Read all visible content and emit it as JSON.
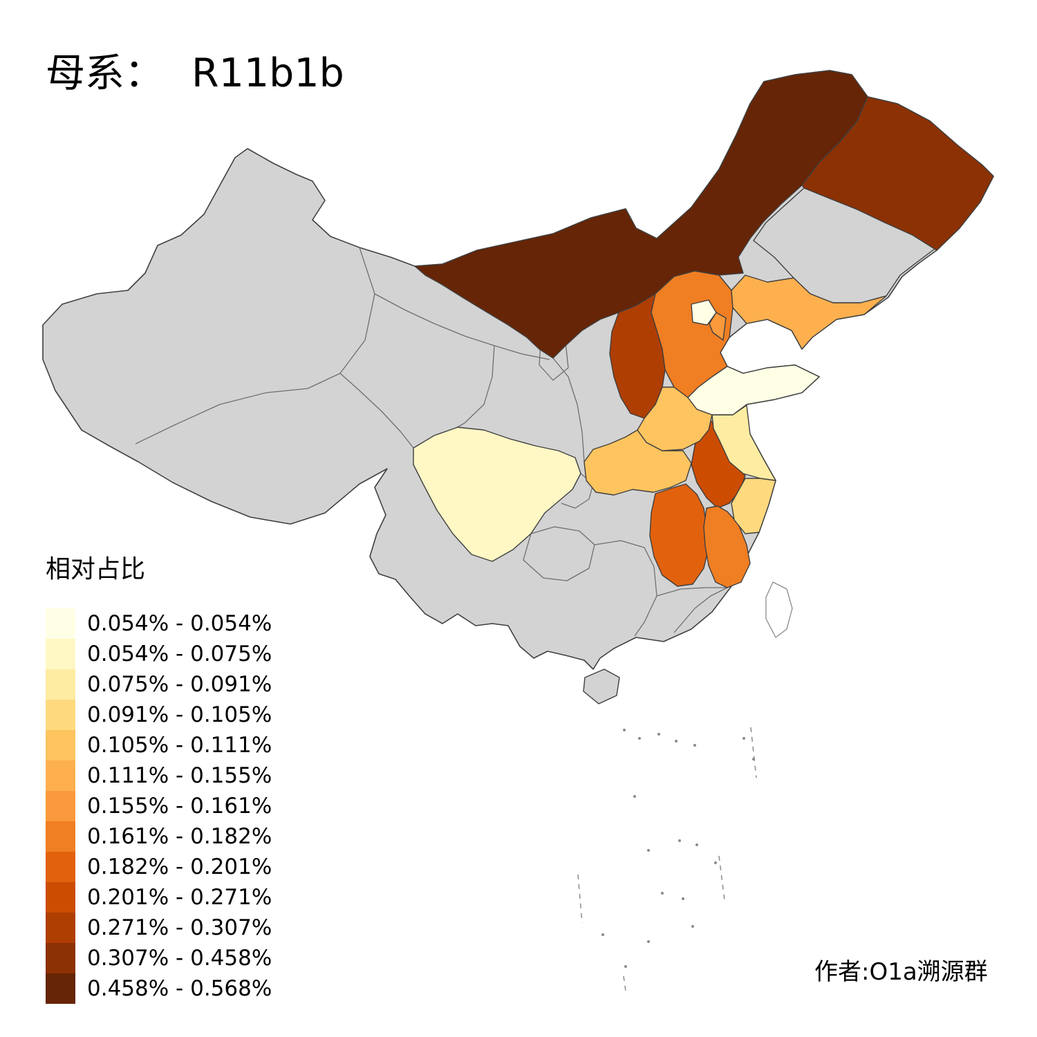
{
  "title": {
    "prefix": "母系：",
    "haplogroup": "R11b1b"
  },
  "legend": {
    "title": "相对占比",
    "bins": [
      {
        "label": "0.054% - 0.054%",
        "color": "#FFFFE5"
      },
      {
        "label": "0.054% - 0.075%",
        "color": "#FFF8C5"
      },
      {
        "label": "0.075% - 0.091%",
        "color": "#FEECA2"
      },
      {
        "label": "0.091% - 0.105%",
        "color": "#FED97E"
      },
      {
        "label": "0.105% - 0.111%",
        "color": "#FEC45F"
      },
      {
        "label": "0.111% - 0.155%",
        "color": "#FEB04E"
      },
      {
        "label": "0.155% - 0.161%",
        "color": "#FB9A3C"
      },
      {
        "label": "0.161% - 0.182%",
        "color": "#F07E22"
      },
      {
        "label": "0.182% - 0.201%",
        "color": "#E2610D"
      },
      {
        "label": "0.201% - 0.271%",
        "color": "#CC4C02"
      },
      {
        "label": "0.271% - 0.307%",
        "color": "#AF3E03"
      },
      {
        "label": "0.307% - 0.458%",
        "color": "#8C3104"
      },
      {
        "label": "0.458% - 0.568%",
        "color": "#662506"
      }
    ]
  },
  "attribution": "作者:O1a溯源群",
  "map": {
    "no_data_color": "#D3D3D3",
    "border_color": "#3F3F3F",
    "sea_color": "#FFFFFF",
    "regions": [
      {
        "id": "inner-mongolia",
        "bin": 13
      },
      {
        "id": "heilongjiang",
        "bin": 12
      },
      {
        "id": "shanxi",
        "bin": 11
      },
      {
        "id": "anhui",
        "bin": 10
      },
      {
        "id": "hunan",
        "bin": 9
      },
      {
        "id": "jiangxi",
        "bin": 8
      },
      {
        "id": "hebei",
        "bin": 8
      },
      {
        "id": "tianjin",
        "bin": 7
      },
      {
        "id": "liaoning",
        "bin": 6
      },
      {
        "id": "hubei",
        "bin": 5
      },
      {
        "id": "henan",
        "bin": 5
      },
      {
        "id": "zhejiang",
        "bin": 4
      },
      {
        "id": "jiangsu",
        "bin": 3
      },
      {
        "id": "sichuan",
        "bin": 2
      },
      {
        "id": "shandong",
        "bin": 1
      },
      {
        "id": "beijing",
        "bin": 1
      }
    ],
    "no_data_regions": [
      "xinjiang",
      "tibet",
      "qinghai",
      "gansu",
      "shaanxi",
      "ningxia",
      "jilin",
      "chongqing",
      "guizhou",
      "yunnan",
      "guangxi",
      "guangdong",
      "fujian",
      "hainan"
    ]
  }
}
